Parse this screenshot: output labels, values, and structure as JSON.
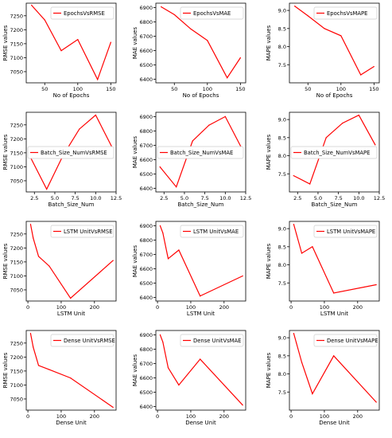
{
  "chart_data": [
    {
      "type": "line",
      "title": "",
      "xlabel": "No of Epochs",
      "ylabel": "RMSE values",
      "xlim": [
        22,
        158
      ],
      "ylim": [
        7010,
        7295
      ],
      "xticks": [
        50,
        100,
        150
      ],
      "yticks": [
        7050,
        7100,
        7150,
        7200,
        7250
      ],
      "grid": false,
      "legend_position": "top-right",
      "series": [
        {
          "name": "EpochsVsRMSE",
          "color": "#ff0000",
          "x": [
            30,
            50,
            75,
            100,
            130,
            150
          ],
          "y": [
            7288,
            7235,
            7125,
            7165,
            7022,
            7155
          ]
        }
      ]
    },
    {
      "type": "line",
      "title": "",
      "xlabel": "No of Epochs",
      "ylabel": "MAE values",
      "xlim": [
        22,
        158
      ],
      "ylim": [
        6375,
        6930
      ],
      "xticks": [
        50,
        100,
        150
      ],
      "yticks": [
        6400,
        6500,
        6600,
        6700,
        6800,
        6900
      ],
      "grid": false,
      "legend_position": "top-right",
      "series": [
        {
          "name": "EpochsVsMAE",
          "color": "#ff0000",
          "x": [
            30,
            50,
            75,
            100,
            130,
            150
          ],
          "y": [
            6905,
            6850,
            6750,
            6670,
            6410,
            6550
          ]
        }
      ]
    },
    {
      "type": "line",
      "title": "",
      "xlabel": "No of Epochs",
      "ylabel": "MAPE values",
      "xlim": [
        22,
        158
      ],
      "ylim": [
        7.0,
        9.2
      ],
      "xticks": [
        50,
        100,
        150
      ],
      "yticks": [
        7.5,
        8.0,
        8.5,
        9.0
      ],
      "grid": false,
      "legend_position": "top-right",
      "series": [
        {
          "name": "EpochsVsMAPE",
          "color": "#ff0000",
          "x": [
            30,
            50,
            75,
            100,
            130,
            150
          ],
          "y": [
            9.12,
            8.85,
            8.5,
            8.3,
            7.22,
            7.45
          ]
        }
      ]
    },
    {
      "type": "line",
      "title": "",
      "xlabel": "Batch_Size_Num",
      "ylabel": "RMSE values",
      "xlim": [
        1.5,
        12.5
      ],
      "ylim": [
        7010,
        7295
      ],
      "xticks": [
        2.5,
        5.0,
        7.5,
        10.0,
        12.5
      ],
      "yticks": [
        7050,
        7100,
        7150,
        7200,
        7250
      ],
      "grid": false,
      "legend_position": "center-left",
      "series": [
        {
          "name": "Batch_Size_NumVsRMSE",
          "color": "#ff0000",
          "x": [
            2,
            4,
            6,
            8,
            10,
            12
          ],
          "y": [
            7135,
            7020,
            7140,
            7235,
            7285,
            7170
          ]
        }
      ]
    },
    {
      "type": "line",
      "title": "",
      "xlabel": "Batch_Size_Num",
      "ylabel": "MAE values",
      "xlim": [
        1.5,
        12.5
      ],
      "ylim": [
        6375,
        6930
      ],
      "xticks": [
        2.5,
        5.0,
        7.5,
        10.0,
        12.5
      ],
      "yticks": [
        6400,
        6500,
        6600,
        6700,
        6800,
        6900
      ],
      "grid": false,
      "legend_position": "center-left",
      "series": [
        {
          "name": "Batch_Size_NumVsMAE",
          "color": "#ff0000",
          "x": [
            2,
            4,
            6,
            8,
            10,
            12
          ],
          "y": [
            6550,
            6410,
            6730,
            6840,
            6900,
            6680
          ]
        }
      ]
    },
    {
      "type": "line",
      "title": "",
      "xlabel": "Batch_Size_Num",
      "ylabel": "MAPE values",
      "xlim": [
        1.5,
        12.5
      ],
      "ylim": [
        7.0,
        9.2
      ],
      "xticks": [
        2.5,
        5.0,
        7.5,
        10.0,
        12.5
      ],
      "yticks": [
        7.5,
        8.0,
        8.5,
        9.0
      ],
      "grid": false,
      "legend_position": "center-left",
      "series": [
        {
          "name": "Batch_Size_NumVsMAPE",
          "color": "#ff0000",
          "x": [
            2,
            4,
            6,
            8,
            10,
            12
          ],
          "y": [
            7.45,
            7.22,
            8.5,
            8.9,
            9.12,
            8.3
          ]
        }
      ]
    },
    {
      "type": "line",
      "title": "",
      "xlabel": "LSTM Unit",
      "ylabel": "RMSE values",
      "xlim": [
        -5,
        265
      ],
      "ylim": [
        7010,
        7295
      ],
      "xticks": [
        0,
        100,
        200
      ],
      "yticks": [
        7050,
        7100,
        7150,
        7200,
        7250
      ],
      "grid": false,
      "legend_position": "top-right",
      "series": [
        {
          "name": "LSTM UnitVsRMSE",
          "color": "#ff0000",
          "x": [
            8,
            16,
            32,
            64,
            128,
            256
          ],
          "y": [
            7285,
            7235,
            7170,
            7135,
            7020,
            7155
          ]
        }
      ]
    },
    {
      "type": "line",
      "title": "",
      "xlabel": "LSTM Unit",
      "ylabel": "MAE values",
      "xlim": [
        -5,
        265
      ],
      "ylim": [
        6375,
        6930
      ],
      "xticks": [
        0,
        100,
        200
      ],
      "yticks": [
        6400,
        6500,
        6600,
        6700,
        6800,
        6900
      ],
      "grid": false,
      "legend_position": "top-right",
      "series": [
        {
          "name": "LSTM UnitVsMAE",
          "color": "#ff0000",
          "x": [
            8,
            16,
            32,
            64,
            128,
            256
          ],
          "y": [
            6900,
            6850,
            6670,
            6730,
            6410,
            6550
          ]
        }
      ]
    },
    {
      "type": "line",
      "title": "",
      "xlabel": "LSTM Unit",
      "ylabel": "MAPE values",
      "xlim": [
        -5,
        265
      ],
      "ylim": [
        7.0,
        9.2
      ],
      "xticks": [
        0,
        100,
        200
      ],
      "yticks": [
        7.5,
        8.0,
        8.5,
        9.0
      ],
      "grid": false,
      "legend_position": "top-right",
      "series": [
        {
          "name": "LSTM UnitVsMAPE",
          "color": "#ff0000",
          "x": [
            8,
            16,
            32,
            64,
            128,
            256
          ],
          "y": [
            9.12,
            8.85,
            8.32,
            8.5,
            7.22,
            7.45
          ]
        }
      ]
    },
    {
      "type": "line",
      "title": "",
      "xlabel": "Dense Unit",
      "ylabel": "RMSE values",
      "xlim": [
        -5,
        265
      ],
      "ylim": [
        7010,
        7295
      ],
      "xticks": [
        0,
        100,
        200
      ],
      "yticks": [
        7050,
        7100,
        7150,
        7200,
        7250
      ],
      "grid": false,
      "legend_position": "top-right",
      "series": [
        {
          "name": "Dense UnitVsRMSE",
          "color": "#ff0000",
          "x": [
            8,
            16,
            32,
            64,
            128,
            256
          ],
          "y": [
            7285,
            7235,
            7170,
            7155,
            7125,
            7020
          ]
        }
      ]
    },
    {
      "type": "line",
      "title": "",
      "xlabel": "Dense Unit",
      "ylabel": "MAE values",
      "xlim": [
        -5,
        265
      ],
      "ylim": [
        6375,
        6930
      ],
      "xticks": [
        0,
        100,
        200
      ],
      "yticks": [
        6400,
        6500,
        6600,
        6700,
        6800,
        6900
      ],
      "grid": false,
      "legend_position": "top-right",
      "series": [
        {
          "name": "Dense UnitVsMAE",
          "color": "#ff0000",
          "x": [
            8,
            16,
            32,
            64,
            128,
            256
          ],
          "y": [
            6900,
            6850,
            6670,
            6550,
            6730,
            6410
          ]
        }
      ]
    },
    {
      "type": "line",
      "title": "",
      "xlabel": "Dense Unit",
      "ylabel": "MAPE values",
      "xlim": [
        -5,
        265
      ],
      "ylim": [
        7.0,
        9.2
      ],
      "xticks": [
        0,
        100,
        200
      ],
      "yticks": [
        7.5,
        8.0,
        8.5,
        9.0
      ],
      "grid": false,
      "legend_position": "top-right",
      "series": [
        {
          "name": "Dense UnitVsMAPE",
          "color": "#ff0000",
          "x": [
            8,
            16,
            32,
            64,
            128,
            256
          ],
          "y": [
            9.12,
            8.85,
            8.32,
            7.45,
            8.5,
            7.22
          ]
        }
      ]
    }
  ]
}
